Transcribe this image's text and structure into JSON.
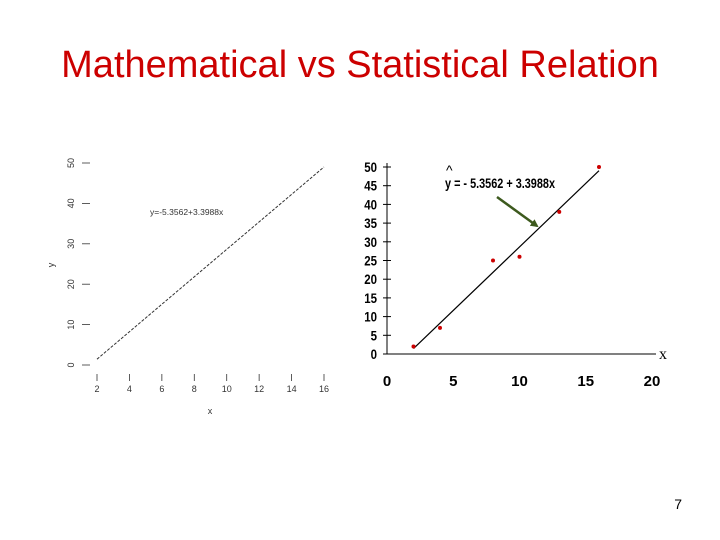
{
  "slide": {
    "title": "Mathematical vs Statistical Relation",
    "page_number": "7"
  },
  "chart_data": [
    {
      "type": "line",
      "xlabel": "x",
      "ylabel": "y",
      "xlim": [
        2,
        16
      ],
      "ylim": [
        0,
        50
      ],
      "x_ticks": [
        "2",
        "4",
        "6",
        "8",
        "10",
        "12",
        "14",
        "16"
      ],
      "y_ticks": [
        "0",
        "10",
        "20",
        "30",
        "40",
        "50"
      ],
      "annotation": "y=-5.3562+3.3988x",
      "line": {
        "x": [
          2,
          16
        ],
        "y": [
          1.44,
          49.02
        ]
      },
      "colors": {
        "line": "#333333",
        "text": "#333333"
      }
    },
    {
      "type": "scatter",
      "xlabel": "x",
      "xlim": [
        0,
        20
      ],
      "ylim": [
        0,
        50
      ],
      "x_ticks": [
        "0",
        "5",
        "10",
        "15",
        "20"
      ],
      "y_ticks": [
        "0",
        "5",
        "10",
        "15",
        "20",
        "25",
        "30",
        "35",
        "40",
        "45",
        "50"
      ],
      "equation_hat": "^",
      "equation": "y = - 5.3562 + 3.3988x",
      "points": {
        "x": [
          2,
          4,
          8,
          10,
          13,
          16
        ],
        "y": [
          2,
          7,
          25,
          26,
          38,
          50
        ]
      },
      "line": {
        "x": [
          2,
          16
        ],
        "y": [
          1.44,
          49.02
        ]
      },
      "colors": {
        "points": "#cc0000",
        "line": "#000000",
        "arrow": "#3d5a1e"
      }
    }
  ]
}
